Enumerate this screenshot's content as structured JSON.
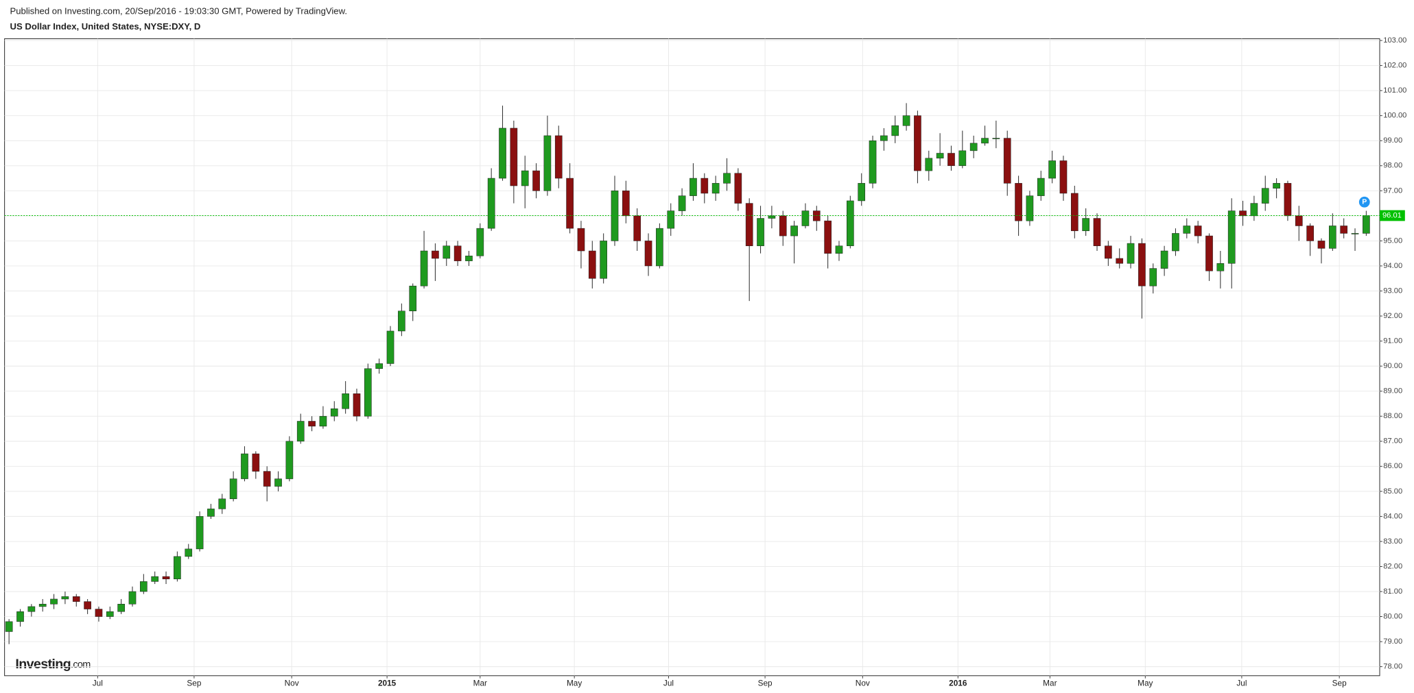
{
  "chart_data": {
    "type": "candlestick",
    "published": "Published on Investing.com, 20/Sep/2016 - 19:03:30 GMT, Powered by TradingView.",
    "title": "US Dollar Index, United States, NYSE:DXY, D",
    "logo": "Investing",
    "logo_suffix": ".com",
    "marker": "P",
    "colors": {
      "up": "#1f9a1f",
      "down": "#8b1010",
      "last": "#00c000",
      "marker": "#2196f3"
    },
    "grid": true,
    "ylim": [
      77.64,
      103.07
    ],
    "yticks": [
      {
        "value": 78,
        "label": "78.00"
      },
      {
        "value": 79,
        "label": "79.00"
      },
      {
        "value": 80,
        "label": "80.00"
      },
      {
        "value": 81,
        "label": "81.00"
      },
      {
        "value": 82,
        "label": "82.00"
      },
      {
        "value": 83,
        "label": "83.00"
      },
      {
        "value": 84,
        "label": "84.00"
      },
      {
        "value": 85,
        "label": "85.00"
      },
      {
        "value": 86,
        "label": "86.00"
      },
      {
        "value": 87,
        "label": "87.00"
      },
      {
        "value": 88,
        "label": "88.00"
      },
      {
        "value": 89,
        "label": "89.00"
      },
      {
        "value": 90,
        "label": "90.00"
      },
      {
        "value": 91,
        "label": "91.00"
      },
      {
        "value": 92,
        "label": "92.00"
      },
      {
        "value": 93,
        "label": "93.00"
      },
      {
        "value": 94,
        "label": "94.00"
      },
      {
        "value": 95,
        "label": "95.00"
      },
      {
        "value": 96,
        "label": "96.00"
      },
      {
        "value": 97,
        "label": "97.00"
      },
      {
        "value": 98,
        "label": "98.00"
      },
      {
        "value": 99,
        "label": "99.00"
      },
      {
        "value": 100,
        "label": "100.00"
      },
      {
        "value": 101,
        "label": "101.00"
      },
      {
        "value": 102,
        "label": "102.00"
      },
      {
        "value": 103,
        "label": "103.00"
      }
    ],
    "xlim": [
      -0.4,
      122.2
    ],
    "xticks": [
      {
        "value": 7.9,
        "label": "Jul"
      },
      {
        "value": 16.5,
        "label": "Sep"
      },
      {
        "value": 25.2,
        "label": "Nov"
      },
      {
        "value": 33.7,
        "label": "2015"
      },
      {
        "value": 42.0,
        "label": "Mar"
      },
      {
        "value": 50.4,
        "label": "May"
      },
      {
        "value": 58.8,
        "label": "Jul"
      },
      {
        "value": 67.4,
        "label": "Sep"
      },
      {
        "value": 76.1,
        "label": "Nov"
      },
      {
        "value": 84.6,
        "label": "2016"
      },
      {
        "value": 92.8,
        "label": "Mar"
      },
      {
        "value": 101.3,
        "label": "May"
      },
      {
        "value": 109.9,
        "label": "Jul"
      },
      {
        "value": 118.6,
        "label": "Sep"
      }
    ],
    "candles": [
      [
        79.4,
        79.9,
        78.9,
        79.8
      ],
      [
        79.8,
        80.3,
        79.6,
        80.2
      ],
      [
        80.2,
        80.5,
        80.0,
        80.4
      ],
      [
        80.4,
        80.7,
        80.2,
        80.5
      ],
      [
        80.5,
        80.9,
        80.3,
        80.7
      ],
      [
        80.7,
        81.0,
        80.5,
        80.8
      ],
      [
        80.8,
        80.9,
        80.4,
        80.6
      ],
      [
        80.6,
        80.7,
        80.1,
        80.3
      ],
      [
        80.3,
        80.4,
        79.8,
        80.0
      ],
      [
        80.0,
        80.4,
        79.9,
        80.2
      ],
      [
        80.2,
        80.7,
        80.1,
        80.5
      ],
      [
        80.5,
        81.2,
        80.4,
        81.0
      ],
      [
        81.0,
        81.7,
        80.9,
        81.4
      ],
      [
        81.4,
        81.8,
        81.3,
        81.6
      ],
      [
        81.6,
        81.8,
        81.3,
        81.5
      ],
      [
        81.5,
        82.6,
        81.4,
        82.4
      ],
      [
        82.4,
        82.9,
        82.3,
        82.7
      ],
      [
        82.7,
        84.2,
        82.6,
        84.0
      ],
      [
        84.0,
        84.5,
        83.9,
        84.3
      ],
      [
        84.3,
        84.9,
        84.1,
        84.7
      ],
      [
        84.7,
        85.8,
        84.6,
        85.5
      ],
      [
        85.5,
        86.8,
        85.4,
        86.5
      ],
      [
        86.5,
        86.6,
        85.5,
        85.8
      ],
      [
        85.8,
        86.0,
        84.6,
        85.2
      ],
      [
        85.2,
        85.8,
        85.0,
        85.5
      ],
      [
        85.5,
        87.2,
        85.4,
        87.0
      ],
      [
        87.0,
        88.1,
        86.9,
        87.8
      ],
      [
        87.8,
        88.0,
        87.4,
        87.6
      ],
      [
        87.6,
        88.4,
        87.5,
        88.0
      ],
      [
        88.0,
        88.6,
        87.8,
        88.3
      ],
      [
        88.3,
        89.4,
        88.1,
        88.9
      ],
      [
        88.9,
        89.1,
        87.8,
        88.0
      ],
      [
        88.0,
        90.1,
        87.9,
        89.9
      ],
      [
        89.9,
        90.3,
        89.7,
        90.1
      ],
      [
        90.1,
        91.6,
        90.0,
        91.4
      ],
      [
        91.4,
        92.5,
        91.2,
        92.2
      ],
      [
        92.2,
        93.3,
        91.8,
        93.2
      ],
      [
        93.2,
        95.4,
        93.1,
        94.6
      ],
      [
        94.6,
        94.9,
        93.4,
        94.3
      ],
      [
        94.3,
        95.0,
        94.0,
        94.8
      ],
      [
        94.8,
        95.0,
        94.0,
        94.2
      ],
      [
        94.2,
        94.6,
        94.0,
        94.4
      ],
      [
        94.4,
        95.7,
        94.3,
        95.5
      ],
      [
        95.5,
        97.9,
        95.4,
        97.5
      ],
      [
        97.5,
        100.4,
        97.4,
        99.5
      ],
      [
        99.5,
        99.8,
        96.5,
        97.2
      ],
      [
        97.2,
        98.4,
        96.3,
        97.8
      ],
      [
        97.8,
        98.1,
        96.7,
        97.0
      ],
      [
        97.0,
        100.0,
        96.8,
        99.2
      ],
      [
        99.2,
        99.6,
        97.1,
        97.5
      ],
      [
        97.5,
        98.1,
        95.3,
        95.5
      ],
      [
        95.5,
        95.8,
        93.9,
        94.6
      ],
      [
        94.6,
        95.0,
        93.1,
        93.5
      ],
      [
        93.5,
        95.3,
        93.3,
        95.0
      ],
      [
        95.0,
        97.6,
        94.8,
        97.0
      ],
      [
        97.0,
        97.4,
        95.7,
        96.0
      ],
      [
        96.0,
        96.3,
        94.6,
        95.0
      ],
      [
        95.0,
        95.3,
        93.6,
        94.0
      ],
      [
        94.0,
        95.7,
        93.9,
        95.5
      ],
      [
        95.5,
        96.5,
        95.2,
        96.2
      ],
      [
        96.2,
        97.1,
        96.0,
        96.8
      ],
      [
        96.8,
        98.1,
        96.6,
        97.5
      ],
      [
        97.5,
        97.7,
        96.5,
        96.9
      ],
      [
        96.9,
        97.6,
        96.6,
        97.3
      ],
      [
        97.3,
        98.3,
        97.0,
        97.7
      ],
      [
        97.7,
        97.9,
        96.2,
        96.5
      ],
      [
        96.5,
        96.7,
        92.6,
        94.8
      ],
      [
        94.8,
        96.4,
        94.5,
        95.9
      ],
      [
        95.9,
        96.4,
        95.5,
        96.0
      ],
      [
        96.0,
        96.2,
        94.8,
        95.2
      ],
      [
        95.2,
        95.8,
        94.1,
        95.6
      ],
      [
        95.6,
        96.5,
        95.5,
        96.2
      ],
      [
        96.2,
        96.4,
        95.4,
        95.8
      ],
      [
        95.8,
        96.0,
        93.9,
        94.5
      ],
      [
        94.5,
        95.0,
        94.2,
        94.8
      ],
      [
        94.8,
        96.8,
        94.7,
        96.6
      ],
      [
        96.6,
        97.7,
        96.4,
        97.3
      ],
      [
        97.3,
        99.2,
        97.1,
        99.0
      ],
      [
        99.0,
        99.5,
        98.6,
        99.2
      ],
      [
        99.2,
        100.0,
        98.9,
        99.6
      ],
      [
        99.6,
        100.5,
        99.4,
        100.0
      ],
      [
        100.0,
        100.2,
        97.3,
        97.8
      ],
      [
        97.8,
        98.6,
        97.4,
        98.3
      ],
      [
        98.3,
        99.3,
        98.0,
        98.5
      ],
      [
        98.5,
        98.8,
        97.8,
        98.0
      ],
      [
        98.0,
        99.4,
        97.9,
        98.6
      ],
      [
        98.6,
        99.2,
        98.3,
        98.9
      ],
      [
        98.9,
        99.6,
        98.8,
        99.1
      ],
      [
        99.1,
        99.8,
        98.7,
        99.1
      ],
      [
        99.1,
        99.4,
        96.8,
        97.3
      ],
      [
        97.3,
        97.6,
        95.2,
        95.8
      ],
      [
        95.8,
        97.0,
        95.6,
        96.8
      ],
      [
        96.8,
        97.8,
        96.6,
        97.5
      ],
      [
        97.5,
        98.6,
        97.3,
        98.2
      ],
      [
        98.2,
        98.4,
        96.6,
        96.9
      ],
      [
        96.9,
        97.2,
        95.1,
        95.4
      ],
      [
        95.4,
        96.3,
        95.2,
        95.9
      ],
      [
        95.9,
        96.1,
        94.6,
        94.8
      ],
      [
        94.8,
        95.0,
        94.0,
        94.3
      ],
      [
        94.3,
        94.7,
        93.9,
        94.1
      ],
      [
        94.1,
        95.2,
        93.9,
        94.9
      ],
      [
        94.9,
        95.1,
        91.9,
        93.2
      ],
      [
        93.2,
        94.1,
        92.9,
        93.9
      ],
      [
        93.9,
        94.8,
        93.6,
        94.6
      ],
      [
        94.6,
        95.5,
        94.4,
        95.3
      ],
      [
        95.3,
        95.9,
        95.1,
        95.6
      ],
      [
        95.6,
        95.8,
        94.9,
        95.2
      ],
      [
        95.2,
        95.3,
        93.4,
        93.8
      ],
      [
        93.8,
        94.6,
        93.1,
        94.1
      ],
      [
        94.1,
        96.7,
        93.1,
        96.2
      ],
      [
        96.2,
        96.6,
        95.6,
        96.0
      ],
      [
        96.0,
        96.8,
        95.8,
        96.5
      ],
      [
        96.5,
        97.6,
        96.2,
        97.1
      ],
      [
        97.1,
        97.5,
        96.7,
        97.3
      ],
      [
        97.3,
        97.4,
        95.8,
        96.0
      ],
      [
        96.0,
        96.4,
        95.0,
        95.6
      ],
      [
        95.6,
        95.7,
        94.4,
        95.0
      ],
      [
        95.0,
        95.1,
        94.1,
        94.7
      ],
      [
        94.7,
        96.1,
        94.6,
        95.6
      ],
      [
        95.6,
        95.9,
        95.1,
        95.3
      ],
      [
        95.3,
        95.5,
        94.6,
        95.3
      ],
      [
        95.3,
        96.2,
        95.2,
        96.01
      ]
    ]
  }
}
